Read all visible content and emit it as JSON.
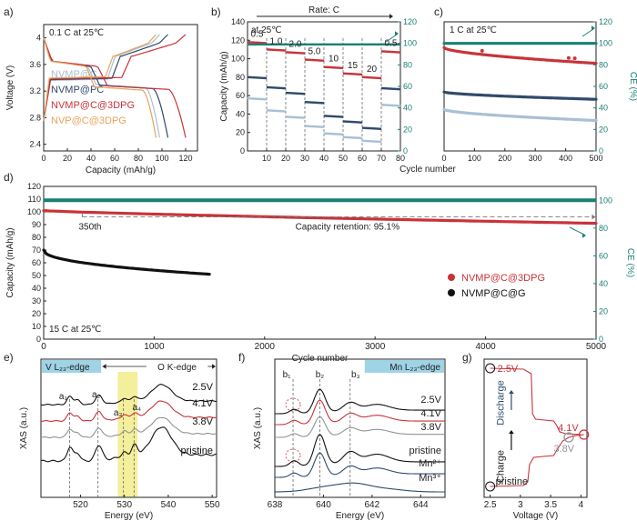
{
  "colors": {
    "red": "#c8333a",
    "navy": "#2f4a6b",
    "lightblue": "#a9bfd3",
    "orange": "#e8a35c",
    "teal": "#1a7f75",
    "black": "#111111",
    "gray": "#8e9498",
    "yellow": "#f4ef9a",
    "xasblue": "#9fd3e6",
    "axis": "#222222"
  },
  "chart_data": [
    {
      "id": "a",
      "type": "line",
      "panel_label": "a)",
      "annotation": "0.1 C at 25℃",
      "xlabel": "Capacity (mAh/g)",
      "ylabel": "Voltage (V)",
      "xlim": [
        0,
        130
      ],
      "ylim": [
        2.3,
        4.2
      ],
      "xticks": [
        0,
        20,
        40,
        60,
        80,
        100,
        120
      ],
      "yticks": [
        2.4,
        2.8,
        3.2,
        3.6,
        4.0
      ],
      "legend": [
        "NVMP@C",
        "NVMP@PC",
        "NVMP@C@3DPG",
        "NVP@C@3DPG"
      ],
      "series": [
        {
          "name": "NVMP@C",
          "color_key": "lightblue",
          "capacity": 98
        },
        {
          "name": "NVMP@PC",
          "color_key": "navy",
          "capacity": 105
        },
        {
          "name": "NVMP@C@3DPG",
          "color_key": "red",
          "capacity": 120
        },
        {
          "name": "NVP@C@3DPG",
          "color_key": "orange",
          "capacity": 95
        }
      ]
    },
    {
      "id": "b",
      "type": "scatter",
      "panel_label": "b)",
      "title": "Rate: C",
      "annotation": "at 25℃",
      "xlabel": "Cycle number",
      "ylabel": "Capacity (mAh/g)",
      "y2label": "",
      "xlim": [
        0,
        80
      ],
      "ylim": [
        0,
        140
      ],
      "y2lim": [
        0,
        120
      ],
      "xticks": [
        10,
        20,
        30,
        40,
        50,
        60,
        70,
        80
      ],
      "yticks": [
        0,
        20,
        40,
        60,
        80,
        100,
        120,
        140
      ],
      "y2ticks": [
        0,
        20,
        40,
        60,
        80,
        100,
        120
      ],
      "rate_labels": [
        "0.5",
        "1.0",
        "2.0",
        "5.0",
        "10",
        "15",
        "20",
        "0.5"
      ],
      "series": [
        {
          "name": "NVMP@C@3DPG",
          "color_key": "red",
          "values": [
            118,
            110,
            107,
            99,
            91,
            84,
            80,
            108
          ]
        },
        {
          "name": "NVMP@PC",
          "color_key": "navy",
          "values": [
            80,
            69,
            63,
            53,
            38,
            32,
            25,
            68
          ]
        },
        {
          "name": "NVMP@C",
          "color_key": "lightblue",
          "values": [
            57,
            44,
            37,
            27,
            19,
            15,
            11,
            50
          ]
        },
        {
          "name": "CE",
          "color_key": "teal",
          "axis": "y2",
          "values": [
            99,
            99,
            99,
            99,
            99,
            99,
            99,
            99
          ]
        }
      ]
    },
    {
      "id": "c",
      "type": "scatter",
      "panel_label": "c)",
      "annotation": "1 C at 25℃",
      "xlabel": "Cycle number",
      "ylabel": "",
      "y2label": "CE (%)",
      "xlim": [
        0,
        500
      ],
      "ylim": [
        0,
        140
      ],
      "y2lim": [
        0,
        120
      ],
      "xticks": [
        0,
        100,
        200,
        300,
        400,
        500
      ],
      "y2ticks": [
        0,
        20,
        40,
        60,
        80,
        100,
        120
      ],
      "series": [
        {
          "name": "NVMP@C@3DPG",
          "color_key": "red",
          "start": 112,
          "end": 95
        },
        {
          "name": "NVMP@PC",
          "color_key": "navy",
          "start": 64,
          "end": 56
        },
        {
          "name": "NVMP@C",
          "color_key": "lightblue",
          "start": 45,
          "end": 33
        },
        {
          "name": "CE",
          "color_key": "teal",
          "axis": "y2",
          "start": 100,
          "end": 100
        }
      ]
    },
    {
      "id": "d",
      "type": "scatter",
      "panel_label": "d)",
      "annotation": "15 C at 25℃",
      "xlabel": "Cycle number",
      "ylabel": "Capacity (mAh/g)",
      "y2label": "CE (%)",
      "xlim": [
        0,
        5000
      ],
      "ylim": [
        0,
        120
      ],
      "y2lim": [
        0,
        110
      ],
      "xticks": [
        0,
        1000,
        2000,
        3000,
        4000,
        5000
      ],
      "yticks": [
        0,
        10,
        20,
        30,
        40,
        50,
        60,
        70,
        80,
        90,
        100,
        110,
        120
      ],
      "y2ticks": [
        0,
        20,
        40,
        60,
        80,
        100
      ],
      "retention_label": "Capacity retention: 95.1%",
      "marker_label": "350th",
      "legend": [
        "NVMP@C@3DPG",
        "NVMP@C@G"
      ],
      "series": [
        {
          "name": "NVMP@C@3DPG",
          "color_key": "red",
          "start": 101,
          "end": 91
        },
        {
          "name": "NVMP@C@G",
          "color_key": "black",
          "start": 70,
          "end": 51,
          "last_cycle": 1500
        },
        {
          "name": "CE",
          "color_key": "teal",
          "axis": "y2",
          "start": 100,
          "end": 100
        }
      ]
    },
    {
      "id": "e",
      "type": "line",
      "panel_label": "e)",
      "xlabel": "Energy (eV)",
      "ylabel": "XAS (a.u.)",
      "xlim": [
        511,
        551
      ],
      "xticks": [
        520,
        530,
        540,
        550
      ],
      "edge_labels": [
        "V L₂₃-edge",
        "O K-edge"
      ],
      "peaks": [
        {
          "label": "a₁",
          "energy": 517.5
        },
        {
          "label": "a₂",
          "energy": 524
        },
        {
          "label": "a₃",
          "energy": 529.8
        },
        {
          "label": "a₄",
          "energy": 532.2
        }
      ],
      "series": [
        {
          "name": "2.5V",
          "color_key": "black"
        },
        {
          "name": "4.1V",
          "color_key": "red"
        },
        {
          "name": "3.8V",
          "color_key": "gray"
        },
        {
          "name": "pristine",
          "color_key": "black"
        }
      ]
    },
    {
      "id": "f",
      "type": "line",
      "panel_label": "f)",
      "xlabel": "Energy (eV)",
      "ylabel": "XAS (a.u.)",
      "xlim": [
        638,
        645
      ],
      "xticks": [
        638,
        640,
        642,
        644
      ],
      "edge_label": "Mn L₂₃-edge",
      "peaks": [
        {
          "label": "b₁",
          "energy": 638.75
        },
        {
          "label": "b₂",
          "energy": 639.85
        },
        {
          "label": "b₃",
          "energy": 641.1
        }
      ],
      "series": [
        {
          "name": "2.5V",
          "color_key": "black"
        },
        {
          "name": "4.1V",
          "color_key": "red"
        },
        {
          "name": "3.8V",
          "color_key": "gray"
        },
        {
          "name": "pristine",
          "color_key": "black"
        },
        {
          "name": "Mn²⁺",
          "color_key": "navy"
        },
        {
          "name": "Mn³⁺",
          "color_key": "navy"
        }
      ]
    },
    {
      "id": "g",
      "type": "line",
      "panel_label": "g)",
      "xlabel": "Voltage (V)",
      "xlim": [
        2.4,
        4.1
      ],
      "xticks": [
        2.5,
        3.0,
        3.5,
        4.0
      ],
      "points": [
        {
          "label": "2.5V",
          "voltage": 2.5
        },
        {
          "label": "4.1V",
          "voltage": 4.05
        },
        {
          "label": "3.8V",
          "voltage": 3.8
        },
        {
          "label": "pristine",
          "voltage": 2.5
        }
      ],
      "arrows": [
        "Discharge",
        "Charge"
      ]
    }
  ]
}
